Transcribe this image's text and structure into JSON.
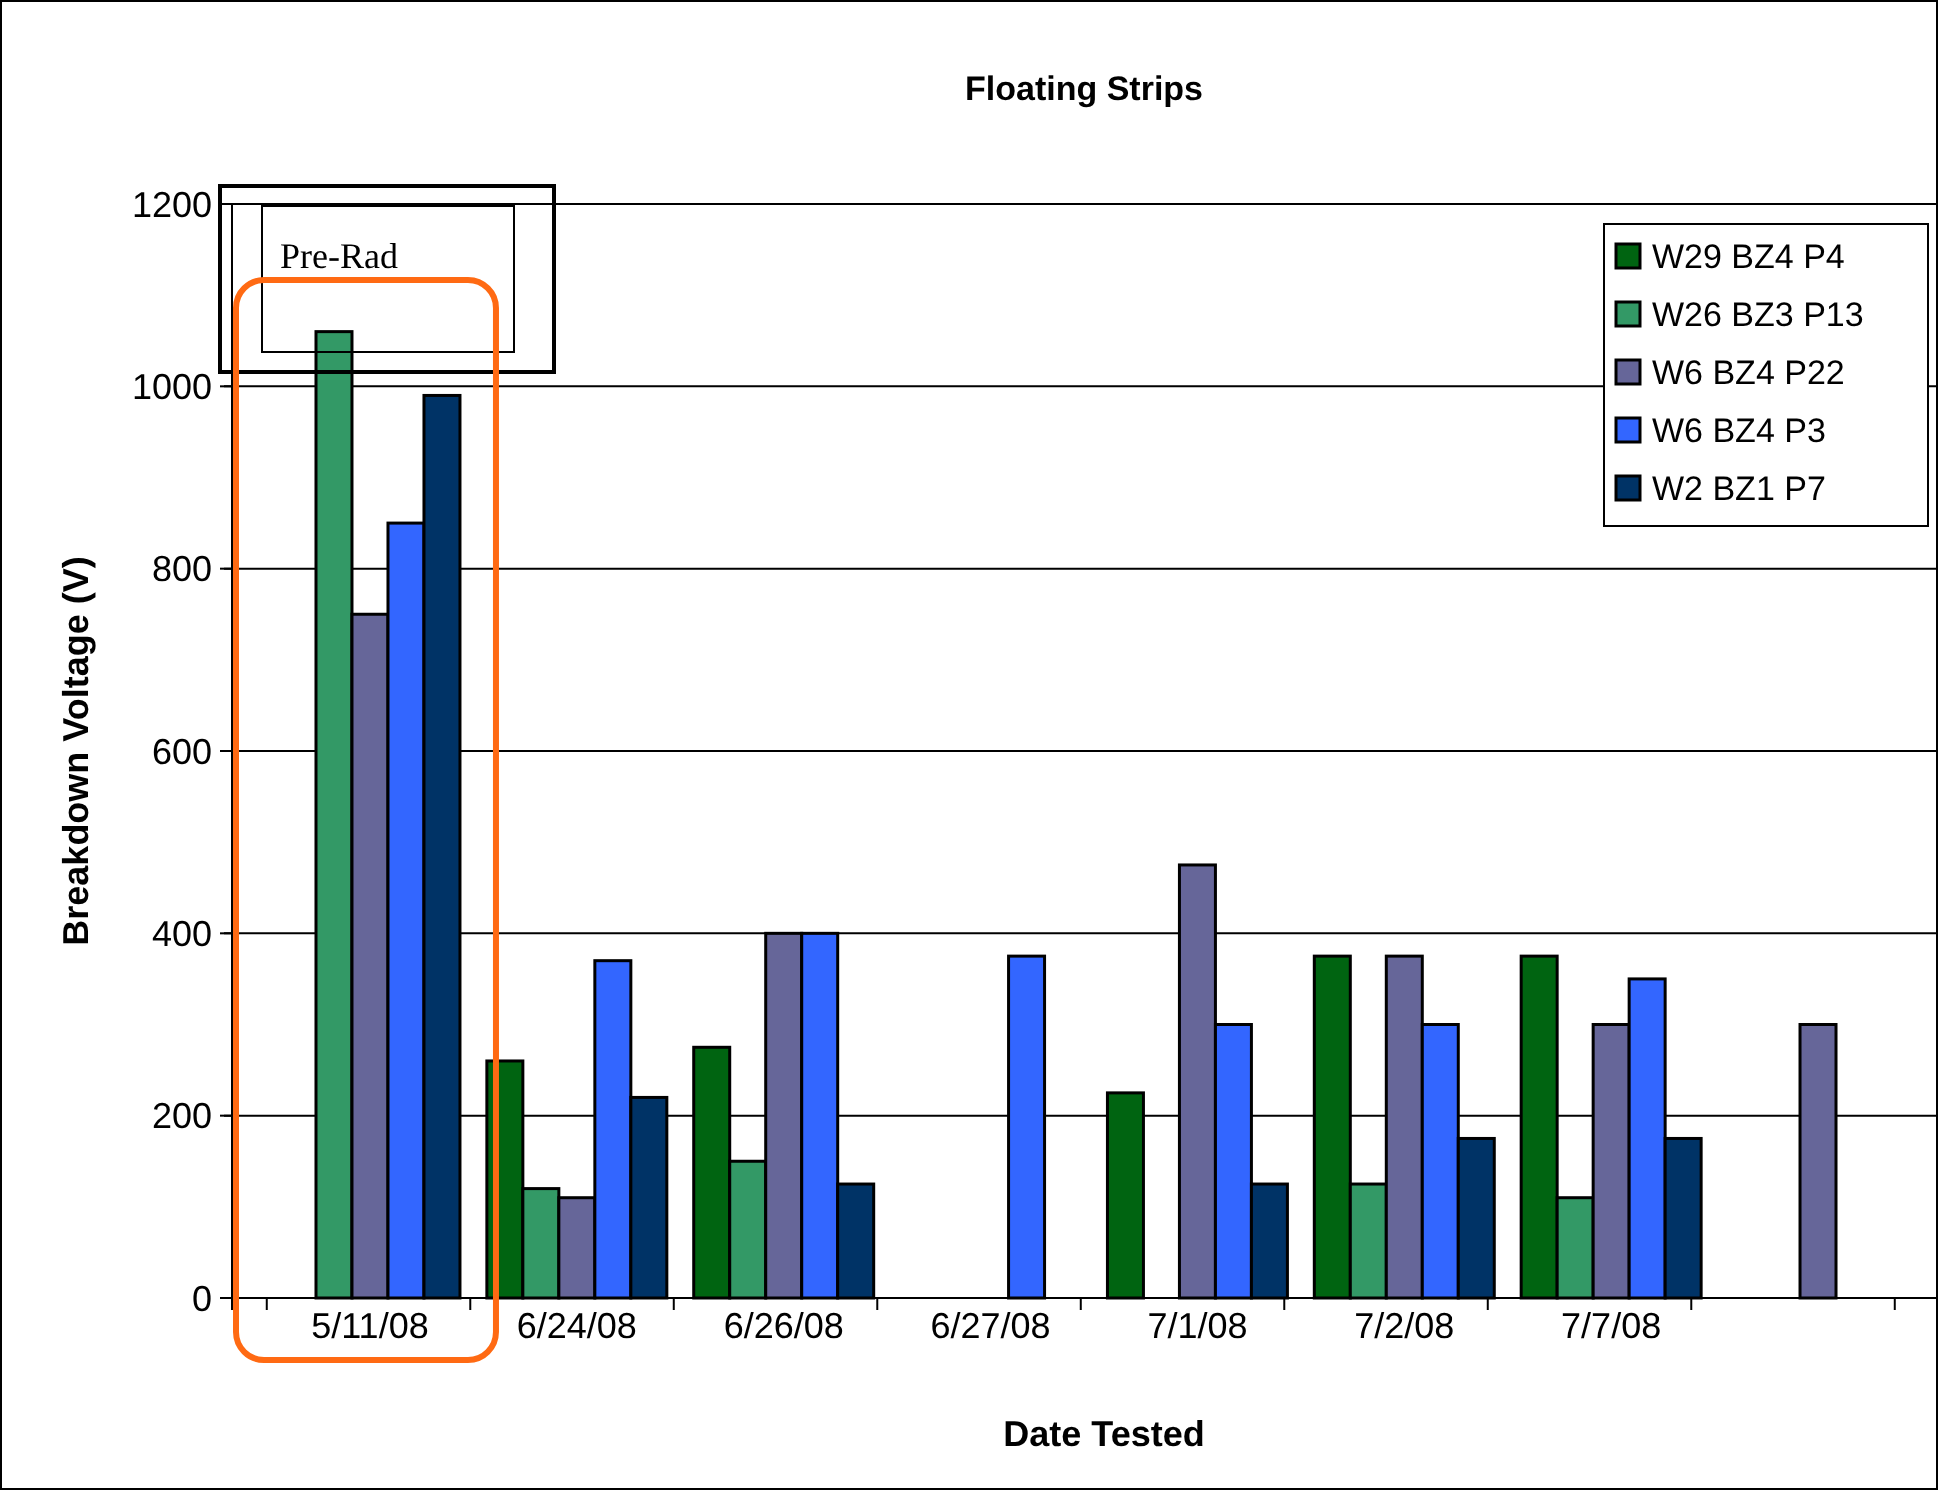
{
  "chart_data": {
    "type": "bar",
    "title": "Floating Strips",
    "xlabel": "Date Tested",
    "ylabel": "Breakdown Voltage (V)",
    "categories": [
      "5/11/08",
      "6/24/08",
      "6/26/08",
      "6/27/08",
      "7/1/08",
      "7/2/08",
      "7/7/08",
      null
    ],
    "series": [
      {
        "name": "W29 BZ4 P4",
        "color": "#006411",
        "values": [
          null,
          260,
          275,
          null,
          225,
          375,
          375,
          null
        ]
      },
      {
        "name": "W26 BZ3 P13",
        "color": "#339966",
        "values": [
          1060,
          120,
          150,
          null,
          null,
          125,
          110,
          null
        ]
      },
      {
        "name": "W6 BZ4 P22",
        "color": "#666699",
        "values": [
          750,
          110,
          400,
          null,
          475,
          375,
          300,
          300
        ]
      },
      {
        "name": "W6 BZ4 P3",
        "color": "#3366ff",
        "values": [
          850,
          370,
          400,
          375,
          300,
          300,
          350,
          null
        ]
      },
      {
        "name": "W2 BZ1 P7",
        "color": "#003366",
        "values": [
          990,
          220,
          125,
          null,
          125,
          175,
          175,
          null
        ]
      }
    ],
    "ylim": [
      0,
      1200
    ],
    "yticks": [
      0,
      200,
      400,
      600,
      800,
      1000,
      1200
    ],
    "grid": "y",
    "legend": "top right",
    "annotations": [
      "Pre-Rad"
    ]
  }
}
